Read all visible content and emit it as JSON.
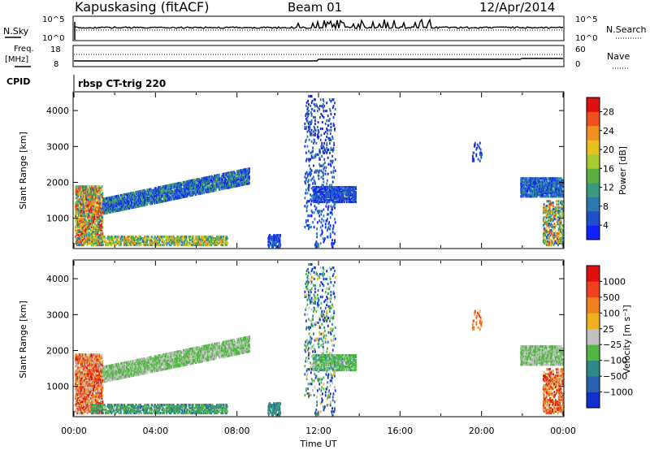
{
  "header": {
    "station": "Kapuskasing (fitACF)",
    "beam": "Beam 01",
    "date": "12/Apr/2014"
  },
  "noise_panel": {
    "left_label": "N.Sky",
    "left_ticks": [
      "10^5",
      "10^0"
    ],
    "right_ticks": [
      "10^5",
      "10^0"
    ],
    "right_label": "N.Search"
  },
  "freq_panel": {
    "left_label_top": "Freq.",
    "left_label_unit": "[MHz]",
    "left_ticks": [
      "18",
      "8"
    ],
    "right_ticks": [
      "60",
      "0"
    ],
    "right_label": "Nave"
  },
  "cpid": {
    "label": "CPID",
    "value": "rbsp CT-trig 220"
  },
  "chart_data": [
    {
      "type": "heatmap",
      "name": "power",
      "ylabel": "Slant Range [km]",
      "yticks": [
        "4000",
        "3000",
        "2000",
        "1000"
      ],
      "ylim": [
        180,
        4500
      ],
      "xlim": [
        0,
        24
      ],
      "colorbar": {
        "label": "Power [dB]",
        "ticks": [
          "28",
          "24",
          "20",
          "16",
          "12",
          "8",
          "4"
        ],
        "range": [
          0,
          30
        ],
        "colors": [
          "#1020ff",
          "#2050c8",
          "#2a7ab0",
          "#3a9a80",
          "#5cb040",
          "#a8cc30",
          "#e8c020",
          "#f09020",
          "#f05020",
          "#e01010"
        ]
      }
    },
    {
      "type": "heatmap",
      "name": "velocity",
      "ylabel": "Slant Range [km]",
      "yticks": [
        "4000",
        "3000",
        "2000",
        "1000"
      ],
      "ylim": [
        180,
        4500
      ],
      "xlim": [
        0,
        24
      ],
      "xticks": [
        "00:00",
        "04:00",
        "08:00",
        "12:00",
        "16:00",
        "20:00",
        "00:00"
      ],
      "xlabel": "Time UT",
      "colorbar": {
        "label": "Velocity [m s⁻¹]",
        "ticks": [
          "1000",
          "500",
          "100",
          "25",
          "−25",
          "−100",
          "−500",
          "−1000"
        ],
        "colors": [
          "#1030d0",
          "#2860b0",
          "#2d8a88",
          "#50b840",
          "#c0c0c0",
          "#f0b020",
          "#f08020",
          "#f04020",
          "#e01010"
        ]
      }
    }
  ],
  "scatter_groups": [
    {
      "t0": 0.05,
      "t1": 1.4,
      "r0": 250,
      "r1": 1900,
      "density": 0.55,
      "pw": [
        0.2,
        1.0
      ],
      "vel": [
        0.45,
        1.0
      ]
    },
    {
      "t0": 0.8,
      "t1": 7.5,
      "r0": 250,
      "r1": 480,
      "density": 0.45,
      "pw": [
        0.2,
        0.8
      ],
      "vel": [
        0.2,
        0.45
      ]
    },
    {
      "t0": 1.4,
      "t1": 8.6,
      "r0": 1500,
      "r1": 2150,
      "band": true,
      "density": 0.65,
      "pw": [
        0.0,
        0.45
      ],
      "vel": [
        0.38,
        0.5
      ]
    },
    {
      "t0": 11.3,
      "t1": 11.8,
      "r0": 700,
      "r1": 4400,
      "density": 0.12,
      "pw": [
        0.0,
        0.3
      ],
      "vel": [
        0.0,
        0.6
      ]
    },
    {
      "t0": 11.8,
      "t1": 12.8,
      "r0": 200,
      "r1": 4300,
      "density": 0.1,
      "pw": [
        0.0,
        0.3
      ],
      "vel": [
        0.0,
        0.6
      ]
    },
    {
      "t0": 11.7,
      "t1": 13.8,
      "r0": 1450,
      "r1": 1900,
      "density": 0.55,
      "pw": [
        0.0,
        0.3
      ],
      "vel": [
        0.3,
        0.5
      ]
    },
    {
      "t0": 21.9,
      "t1": 24.0,
      "r0": 1600,
      "r1": 2100,
      "density": 0.65,
      "pw": [
        0.0,
        0.4
      ],
      "vel": [
        0.38,
        0.5
      ]
    },
    {
      "t0": 23.0,
      "t1": 24.0,
      "r0": 250,
      "r1": 1500,
      "density": 0.3,
      "pw": [
        0.1,
        0.9
      ],
      "vel": [
        0.55,
        1.0
      ]
    },
    {
      "t0": 9.5,
      "t1": 10.1,
      "r0": 200,
      "r1": 550,
      "density": 0.5,
      "pw": [
        0.0,
        0.3
      ],
      "vel": [
        0.2,
        0.35
      ]
    },
    {
      "t0": 19.5,
      "t1": 20.0,
      "r0": 2500,
      "r1": 3100,
      "density": 0.15,
      "pw": [
        0.0,
        0.2
      ],
      "vel": [
        0.55,
        0.9
      ]
    }
  ],
  "colors": {
    "background": "#ffffff",
    "frame": "#000000"
  }
}
